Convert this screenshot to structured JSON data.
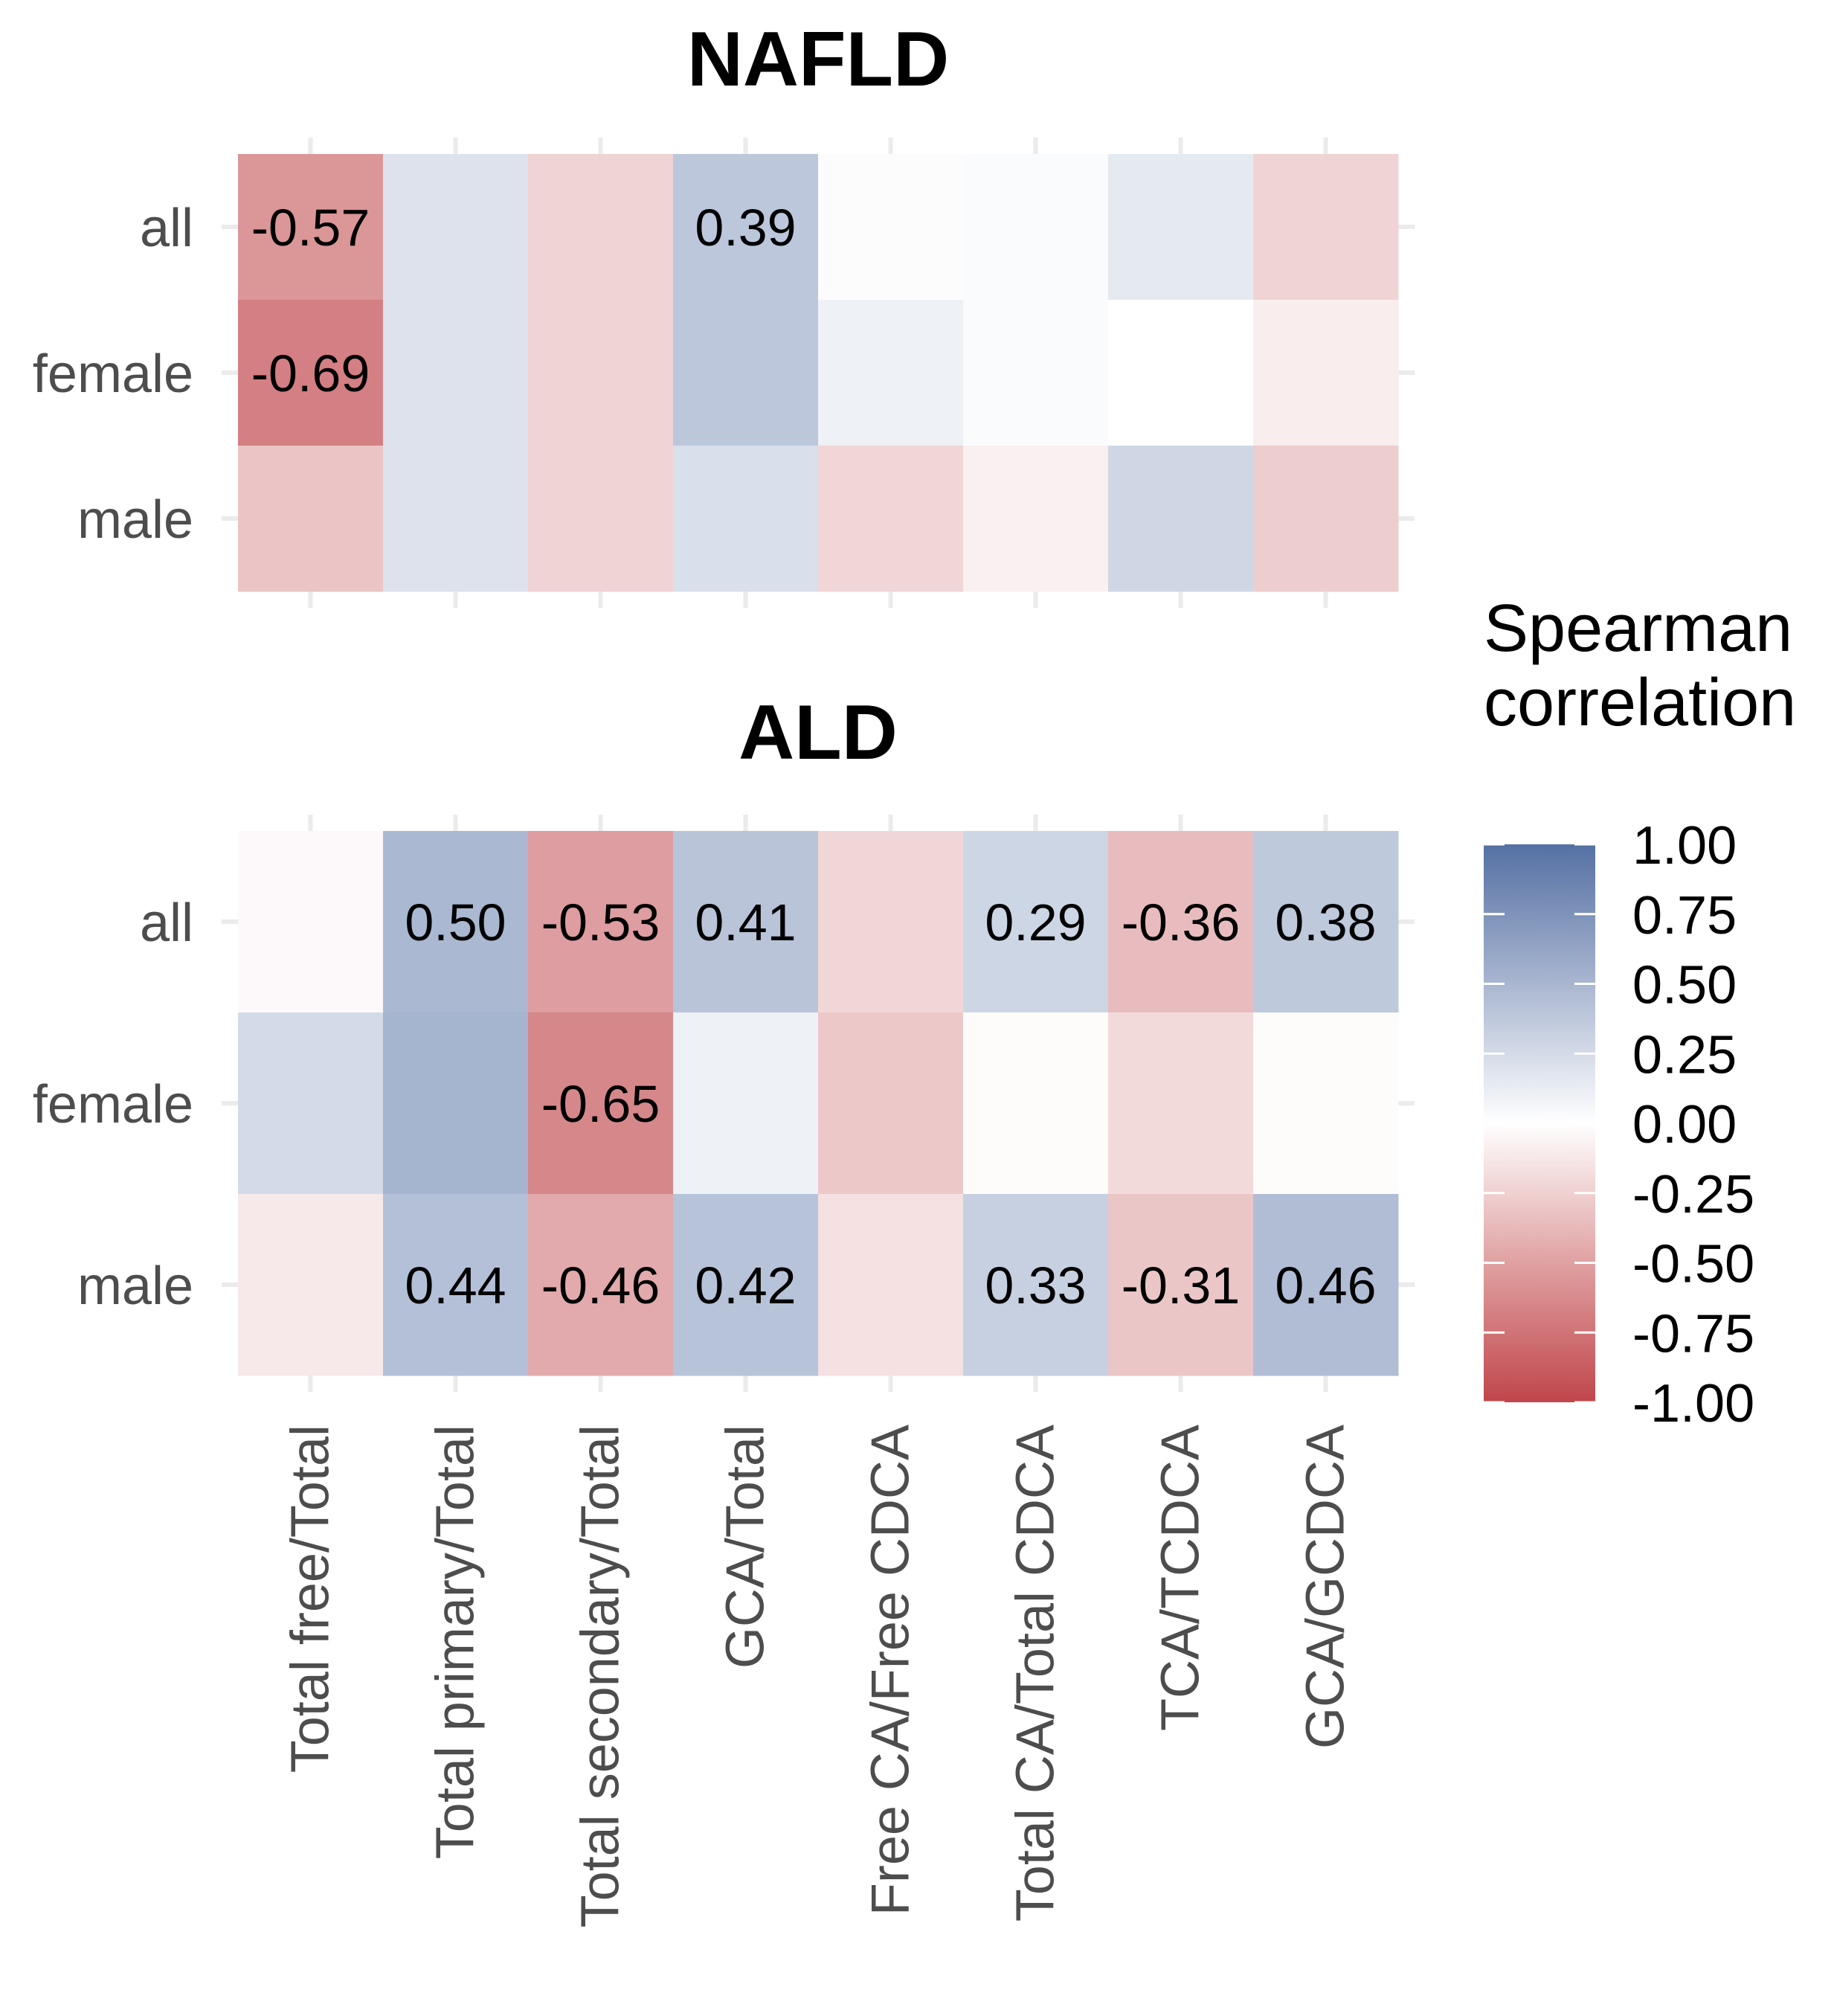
{
  "chart_data": {
    "type": "heatmap",
    "legend": {
      "title_lines": [
        "Spearman",
        "correlation"
      ],
      "ticks": [
        1.0,
        0.75,
        0.5,
        0.25,
        0.0,
        -0.25,
        -0.5,
        -0.75,
        -1.0
      ],
      "tick_labels": [
        "1.00",
        "0.75",
        "0.50",
        "0.25",
        "0.00",
        "-0.25",
        "-0.50",
        "-0.75",
        "-1.00"
      ],
      "range": [
        -1,
        1
      ],
      "position": "right",
      "low_color": "#c0464b",
      "mid_color": "#ffffff",
      "high_color": "#5470a3"
    },
    "x_categories": [
      "Total free/Total",
      "Total primary/Total",
      "Total secondary/Total",
      "GCA/Total",
      "Free CA/Free CDCA",
      "Total CA/Total CDCA",
      "TCA/TCDCA",
      "GCA/GCDCA"
    ],
    "y_categories": [
      "all",
      "female",
      "male"
    ],
    "panels": [
      {
        "title": "NAFLD",
        "values": [
          [
            -0.57,
            0.2,
            -0.24,
            0.39,
            0.02,
            0.03,
            0.15,
            -0.24
          ],
          [
            -0.69,
            0.2,
            -0.24,
            0.39,
            0.1,
            0.03,
            0.0,
            -0.1
          ],
          [
            -0.32,
            0.2,
            -0.24,
            0.22,
            -0.22,
            -0.08,
            0.28,
            -0.27
          ]
        ],
        "labels": [
          [
            "-0.57",
            "",
            "",
            "0.39",
            "",
            "",
            "",
            ""
          ],
          [
            "-0.69",
            "",
            "",
            "",
            "",
            "",
            "",
            ""
          ],
          [
            "",
            "",
            "",
            "",
            "",
            "",
            "",
            ""
          ]
        ]
      },
      {
        "title": "ALD",
        "values": [
          [
            -0.03,
            0.5,
            -0.53,
            0.41,
            -0.22,
            0.29,
            -0.36,
            0.38
          ],
          [
            0.25,
            0.52,
            -0.65,
            0.1,
            -0.3,
            -0.02,
            -0.2,
            -0.02
          ],
          [
            -0.12,
            0.44,
            -0.46,
            0.42,
            -0.16,
            0.33,
            -0.31,
            0.46
          ]
        ],
        "labels": [
          [
            "",
            "0.50",
            "-0.53",
            "0.41",
            "",
            "0.29",
            "-0.36",
            "0.38"
          ],
          [
            "",
            "",
            "-0.65",
            "",
            "",
            "",
            "",
            ""
          ],
          [
            "",
            "0.44",
            "-0.46",
            "0.42",
            "",
            "0.33",
            "-0.31",
            "0.46"
          ]
        ]
      }
    ]
  }
}
